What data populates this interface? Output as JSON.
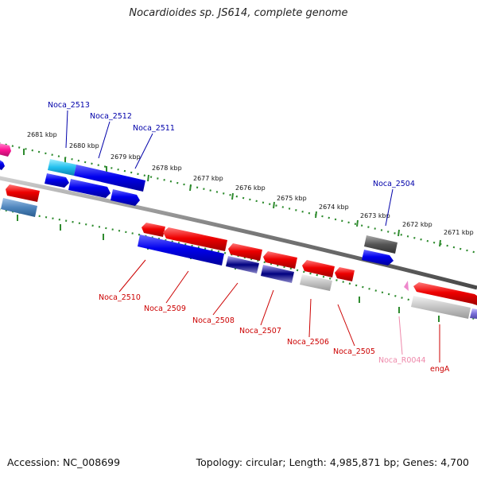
{
  "title": "Nocardioides sp. JS614, complete genome",
  "footer": {
    "accession": "Accession: NC_008699",
    "summary": "Topology: circular; Length: 4,985,871 bp; Genes: 4,700"
  },
  "colors": {
    "backbone": "#888888",
    "tick": "#2e8b2e",
    "label_forward": "#0000aa",
    "label_reverse": "#cc0000",
    "label_rna": "#ee88aa"
  },
  "scale_ticks": [
    {
      "label": "2681 kbp"
    },
    {
      "label": "2680 kbp"
    },
    {
      "label": "2679 kbp"
    },
    {
      "label": "2678 kbp"
    },
    {
      "label": "2677 kbp"
    },
    {
      "label": "2676 kbp"
    },
    {
      "label": "2675 kbp"
    },
    {
      "label": "2674 kbp"
    },
    {
      "label": "2673 kbp"
    },
    {
      "label": "2672 kbp"
    },
    {
      "label": "2671 kbp"
    }
  ],
  "gene_labels": [
    {
      "text": "Noca_2513",
      "strand": "forward"
    },
    {
      "text": "Noca_2512",
      "strand": "forward"
    },
    {
      "text": "Noca_2511",
      "strand": "forward"
    },
    {
      "text": "Noca_2504",
      "strand": "forward"
    },
    {
      "text": "Noca_2510",
      "strand": "reverse"
    },
    {
      "text": "Noca_2509",
      "strand": "reverse"
    },
    {
      "text": "Noca_2508",
      "strand": "reverse"
    },
    {
      "text": "Noca_2507",
      "strand": "reverse"
    },
    {
      "text": "Noca_2506",
      "strand": "reverse"
    },
    {
      "text": "Noca_2505",
      "strand": "reverse"
    },
    {
      "text": "Noca_R0044",
      "strand": "rna"
    },
    {
      "text": "engA",
      "strand": "reverse"
    }
  ]
}
